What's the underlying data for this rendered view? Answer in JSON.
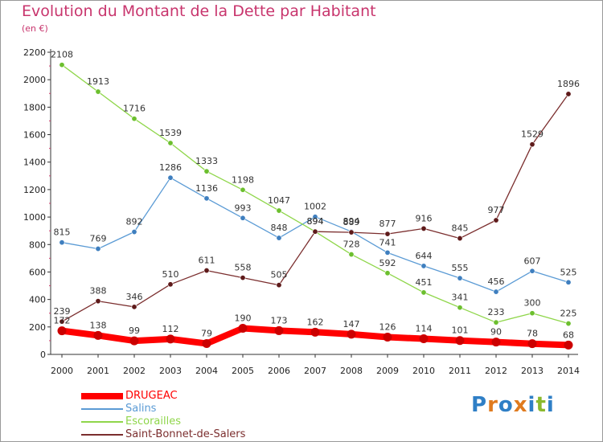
{
  "header": {
    "title": "Evolution du Montant de la Dette par Habitant",
    "unit": "(en €)"
  },
  "logo": {
    "text": "Proxiti",
    "colors": [
      "#2f7fc6",
      "#e07b1f",
      "#2f7fc6",
      "#e07b1f",
      "#2f7fc6",
      "#8ab92d",
      "#2f7fc6"
    ]
  },
  "chart_data": {
    "type": "line",
    "title": "Evolution du Montant de la Dette par Habitant",
    "subtitle": "(en €)",
    "xlabel": "",
    "ylabel": "",
    "x": [
      "2000",
      "2001",
      "2002",
      "2003",
      "2004",
      "2005",
      "2006",
      "2007",
      "2008",
      "2009",
      "2010",
      "2011",
      "2012",
      "2013",
      "2014"
    ],
    "ylim": [
      0,
      2200
    ],
    "yticks": [
      0,
      200,
      400,
      600,
      800,
      1000,
      1200,
      1400,
      1600,
      1800,
      2000,
      2200
    ],
    "grid": false,
    "legend": "bottom-left",
    "series": [
      {
        "name": "DRUGEAC",
        "color": "#ff0000",
        "marker": "#cc0000",
        "emphasis": true,
        "values": [
          172,
          138,
          99,
          112,
          79,
          190,
          173,
          162,
          147,
          126,
          114,
          101,
          90,
          78,
          68
        ]
      },
      {
        "name": "Salins",
        "color": "#5b9bd5",
        "marker": "#3f7fbf",
        "emphasis": false,
        "values": [
          815,
          769,
          892,
          1286,
          1136,
          993,
          848,
          1002,
          894,
          741,
          644,
          555,
          456,
          607,
          525
        ]
      },
      {
        "name": "Escorailles",
        "color": "#8fd64a",
        "marker": "#6cbf2e",
        "emphasis": false,
        "values": [
          2108,
          1913,
          1716,
          1539,
          1333,
          1198,
          1047,
          894,
          728,
          592,
          451,
          341,
          233,
          300,
          225
        ]
      },
      {
        "name": "Saint-Bonnet-de-Salers",
        "color": "#7b2e2e",
        "marker": "#5e1a1a",
        "emphasis": false,
        "values": [
          239,
          388,
          346,
          510,
          611,
          558,
          505,
          894,
          889,
          877,
          916,
          845,
          977,
          1529,
          1896
        ]
      }
    ]
  }
}
